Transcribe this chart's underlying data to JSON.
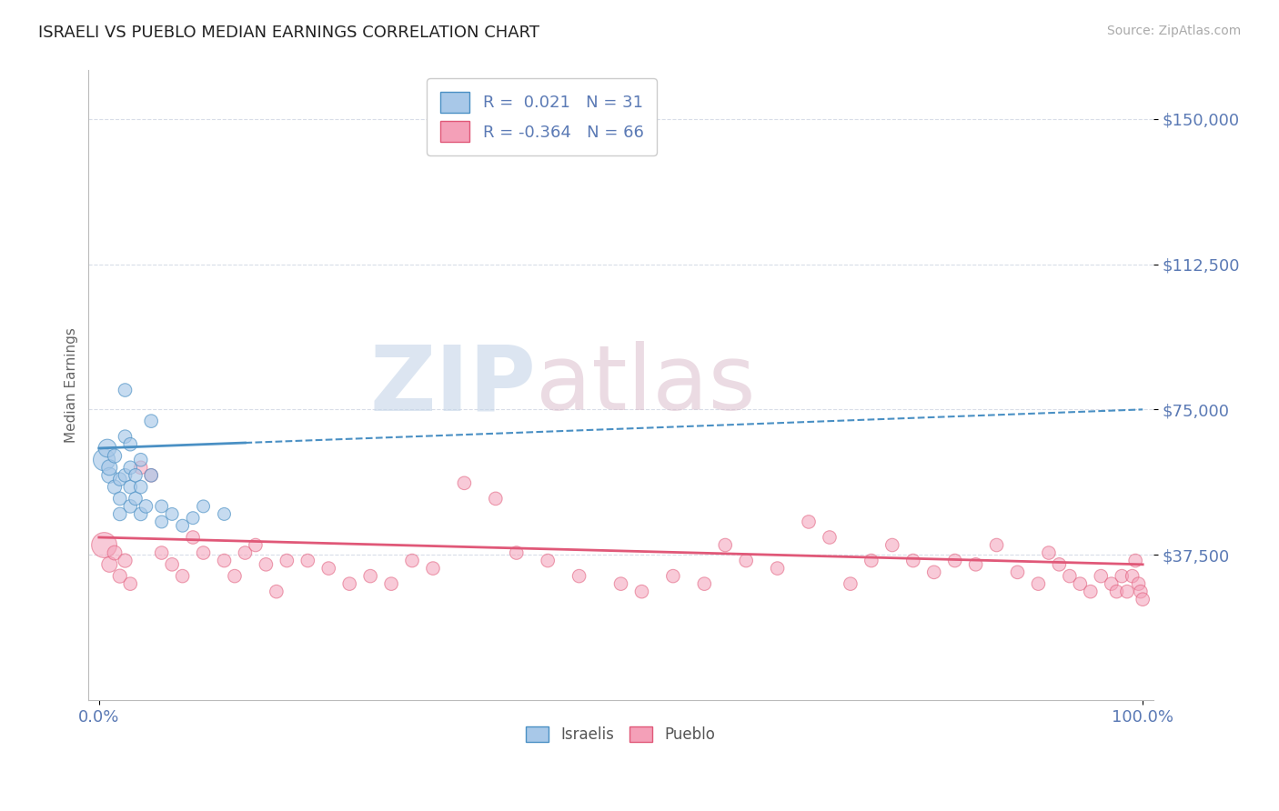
{
  "title": "ISRAELI VS PUEBLO MEDIAN EARNINGS CORRELATION CHART",
  "source": "Source: ZipAtlas.com",
  "ylabel": "Median Earnings",
  "xlim": [
    -0.01,
    1.01
  ],
  "ylim": [
    0,
    162500
  ],
  "yticks": [
    37500,
    75000,
    112500,
    150000
  ],
  "ytick_labels": [
    "$37,500",
    "$75,000",
    "$112,500",
    "$150,000"
  ],
  "xtick_labels": [
    "0.0%",
    "100.0%"
  ],
  "legend_r_israeli": "0.021",
  "legend_n_israeli": "31",
  "legend_r_pueblo": "-0.364",
  "legend_n_pueblo": "66",
  "color_israeli": "#a8c8e8",
  "color_pueblo": "#f4a0b8",
  "color_trendline_israeli": "#4a90c4",
  "color_trendline_pueblo": "#e05878",
  "color_tick_labels": "#5b7ab5",
  "color_grid": "#d8dde8",
  "watermark_zip": "ZIP",
  "watermark_atlas": "atlas",
  "israeli_x": [
    0.005,
    0.008,
    0.01,
    0.01,
    0.015,
    0.015,
    0.02,
    0.02,
    0.02,
    0.025,
    0.025,
    0.025,
    0.03,
    0.03,
    0.03,
    0.03,
    0.035,
    0.035,
    0.04,
    0.04,
    0.04,
    0.045,
    0.05,
    0.05,
    0.06,
    0.06,
    0.07,
    0.08,
    0.09,
    0.1,
    0.12
  ],
  "israeli_y": [
    62000,
    65000,
    58000,
    60000,
    55000,
    63000,
    52000,
    57000,
    48000,
    80000,
    68000,
    58000,
    66000,
    60000,
    55000,
    50000,
    58000,
    52000,
    62000,
    55000,
    48000,
    50000,
    72000,
    58000,
    50000,
    46000,
    48000,
    45000,
    47000,
    50000,
    48000
  ],
  "pueblo_x": [
    0.005,
    0.01,
    0.015,
    0.02,
    0.025,
    0.03,
    0.04,
    0.05,
    0.06,
    0.07,
    0.08,
    0.09,
    0.1,
    0.12,
    0.13,
    0.14,
    0.15,
    0.16,
    0.17,
    0.18,
    0.2,
    0.22,
    0.24,
    0.26,
    0.28,
    0.3,
    0.32,
    0.35,
    0.38,
    0.4,
    0.43,
    0.46,
    0.5,
    0.52,
    0.55,
    0.58,
    0.6,
    0.62,
    0.65,
    0.68,
    0.7,
    0.72,
    0.74,
    0.76,
    0.78,
    0.8,
    0.82,
    0.84,
    0.86,
    0.88,
    0.9,
    0.91,
    0.92,
    0.93,
    0.94,
    0.95,
    0.96,
    0.97,
    0.975,
    0.98,
    0.985,
    0.99,
    0.993,
    0.996,
    0.998,
    1.0
  ],
  "pueblo_y": [
    40000,
    35000,
    38000,
    32000,
    36000,
    30000,
    60000,
    58000,
    38000,
    35000,
    32000,
    42000,
    38000,
    36000,
    32000,
    38000,
    40000,
    35000,
    28000,
    36000,
    36000,
    34000,
    30000,
    32000,
    30000,
    36000,
    34000,
    56000,
    52000,
    38000,
    36000,
    32000,
    30000,
    28000,
    32000,
    30000,
    40000,
    36000,
    34000,
    46000,
    42000,
    30000,
    36000,
    40000,
    36000,
    33000,
    36000,
    35000,
    40000,
    33000,
    30000,
    38000,
    35000,
    32000,
    30000,
    28000,
    32000,
    30000,
    28000,
    32000,
    28000,
    32000,
    36000,
    30000,
    28000,
    26000
  ],
  "israeli_marker_sizes": [
    300,
    200,
    150,
    150,
    120,
    120,
    110,
    110,
    110,
    110,
    110,
    110,
    110,
    110,
    110,
    110,
    110,
    110,
    110,
    110,
    110,
    110,
    110,
    110,
    100,
    100,
    100,
    100,
    100,
    100,
    100
  ],
  "pueblo_marker_sizes": [
    400,
    150,
    130,
    120,
    120,
    110,
    110,
    110,
    110,
    110,
    110,
    110,
    110,
    110,
    110,
    110,
    110,
    110,
    110,
    110,
    110,
    110,
    110,
    110,
    110,
    110,
    110,
    110,
    110,
    110,
    110,
    110,
    110,
    110,
    110,
    110,
    110,
    110,
    110,
    110,
    110,
    110,
    110,
    110,
    110,
    110,
    110,
    110,
    110,
    110,
    110,
    110,
    110,
    110,
    110,
    110,
    110,
    110,
    110,
    110,
    110,
    110,
    110,
    110,
    110,
    110
  ]
}
